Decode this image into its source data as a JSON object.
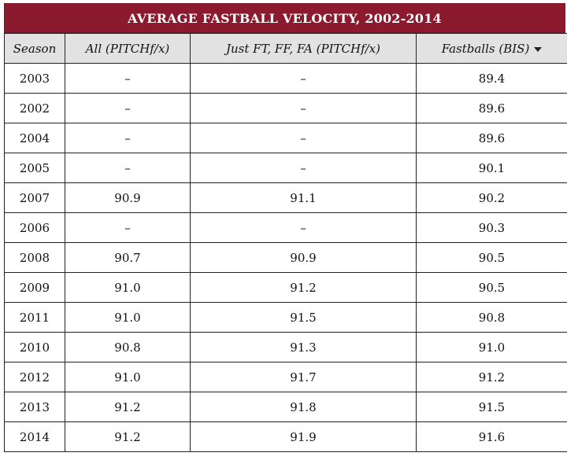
{
  "table": {
    "title": "AVERAGE FASTBALL VELOCITY, 2002-2014",
    "headers": {
      "season": "Season",
      "all": "All (PITCHf/x)",
      "just": "Just FT, FF, FA (PITCHf/x)",
      "bis": "Fastballs (BIS)"
    },
    "sorted_column": "bis",
    "rows": [
      {
        "season": "2003",
        "all": "–",
        "just": "–",
        "bis": "89.4"
      },
      {
        "season": "2002",
        "all": "–",
        "just": "–",
        "bis": "89.6"
      },
      {
        "season": "2004",
        "all": "–",
        "just": "–",
        "bis": "89.6"
      },
      {
        "season": "2005",
        "all": "–",
        "just": "–",
        "bis": "90.1"
      },
      {
        "season": "2007",
        "all": "90.9",
        "just": "91.1",
        "bis": "90.2"
      },
      {
        "season": "2006",
        "all": "–",
        "just": "–",
        "bis": "90.3"
      },
      {
        "season": "2008",
        "all": "90.7",
        "just": "90.9",
        "bis": "90.5"
      },
      {
        "season": "2009",
        "all": "91.0",
        "just": "91.2",
        "bis": "90.5"
      },
      {
        "season": "2011",
        "all": "91.0",
        "just": "91.5",
        "bis": "90.8"
      },
      {
        "season": "2010",
        "all": "90.8",
        "just": "91.3",
        "bis": "91.0"
      },
      {
        "season": "2012",
        "all": "91.0",
        "just": "91.7",
        "bis": "91.2"
      },
      {
        "season": "2013",
        "all": "91.2",
        "just": "91.8",
        "bis": "91.5"
      },
      {
        "season": "2014",
        "all": "91.2",
        "just": "91.9",
        "bis": "91.6"
      }
    ]
  },
  "colors": {
    "title_bg": "#8b1a2e",
    "header_bg": "#e2e2e2"
  }
}
